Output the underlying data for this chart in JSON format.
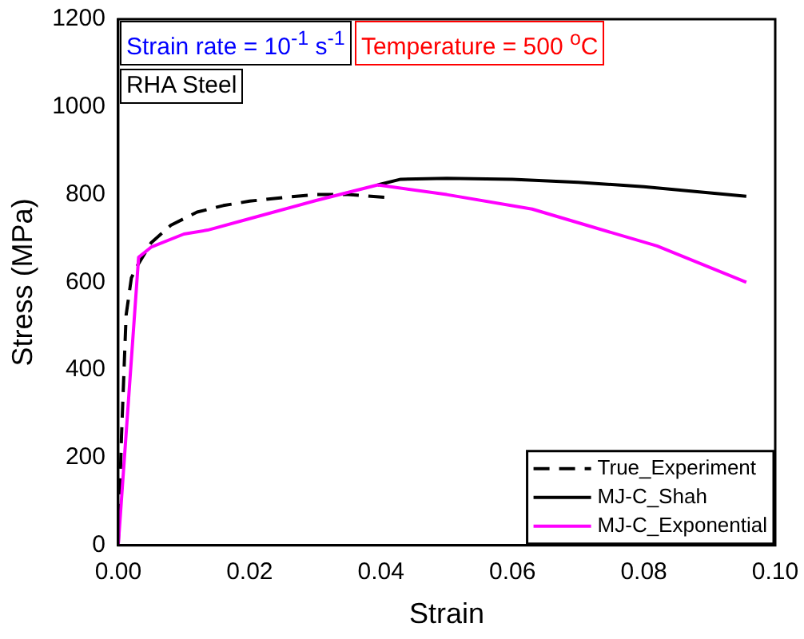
{
  "chart_data": {
    "type": "line",
    "xlabel": "Strain",
    "ylabel": "Stress (MPa)",
    "annotations": [
      "Strain rate = 10$^{-1}$ s$^{-1}$",
      "Temperature = 500 $^{o}$C",
      "RHA Steel"
    ],
    "xlim": [
      0,
      0.1
    ],
    "xticks": [
      {
        "value": 0,
        "label": "0.00"
      },
      {
        "value": 0.02,
        "label": "0.02"
      },
      {
        "value": 0.04,
        "label": "0.04"
      },
      {
        "value": 0.06,
        "label": "0.06"
      },
      {
        "value": 0.08,
        "label": "0.08"
      },
      {
        "value": 0.1,
        "label": "0.10"
      }
    ],
    "ylim": [
      0,
      1200
    ],
    "yticks": [
      0,
      200,
      400,
      600,
      800,
      1000,
      1200
    ],
    "grid": false,
    "legend": "bottom right",
    "marker": "none",
    "series": [
      {
        "name": "True_Experiment",
        "color": "#000000",
        "line_style": "dashed",
        "x": [
          0,
          0.0005,
          0.0012,
          0.002,
          0.003,
          0.005,
          0.008,
          0.012,
          0.016,
          0.02,
          0.025,
          0.03,
          0.035,
          0.0412
        ],
        "values": [
          0,
          250,
          525,
          610,
          640,
          690,
          730,
          760,
          775,
          785,
          793,
          800,
          800,
          793
        ]
      },
      {
        "name": "MJ-C_Shah",
        "color": "#000000",
        "line_style": "solid",
        "x": [
          0.0395,
          0.043,
          0.05,
          0.06,
          0.07,
          0.08,
          0.0956
        ],
        "values": [
          822,
          835,
          837,
          835,
          828,
          818,
          796
        ]
      },
      {
        "name": "MJ-C_Exponential",
        "color": "#ff00ff",
        "line_style": "solid",
        "x": [
          0,
          0.0031,
          0.005,
          0.01,
          0.0136,
          0.02,
          0.03,
          0.0395,
          0.05,
          0.063,
          0.0713,
          0.082,
          0.0956
        ],
        "values": [
          0,
          657,
          680,
          710,
          719,
          745,
          786,
          822,
          800,
          767,
          730,
          683,
          600
        ]
      }
    ]
  }
}
